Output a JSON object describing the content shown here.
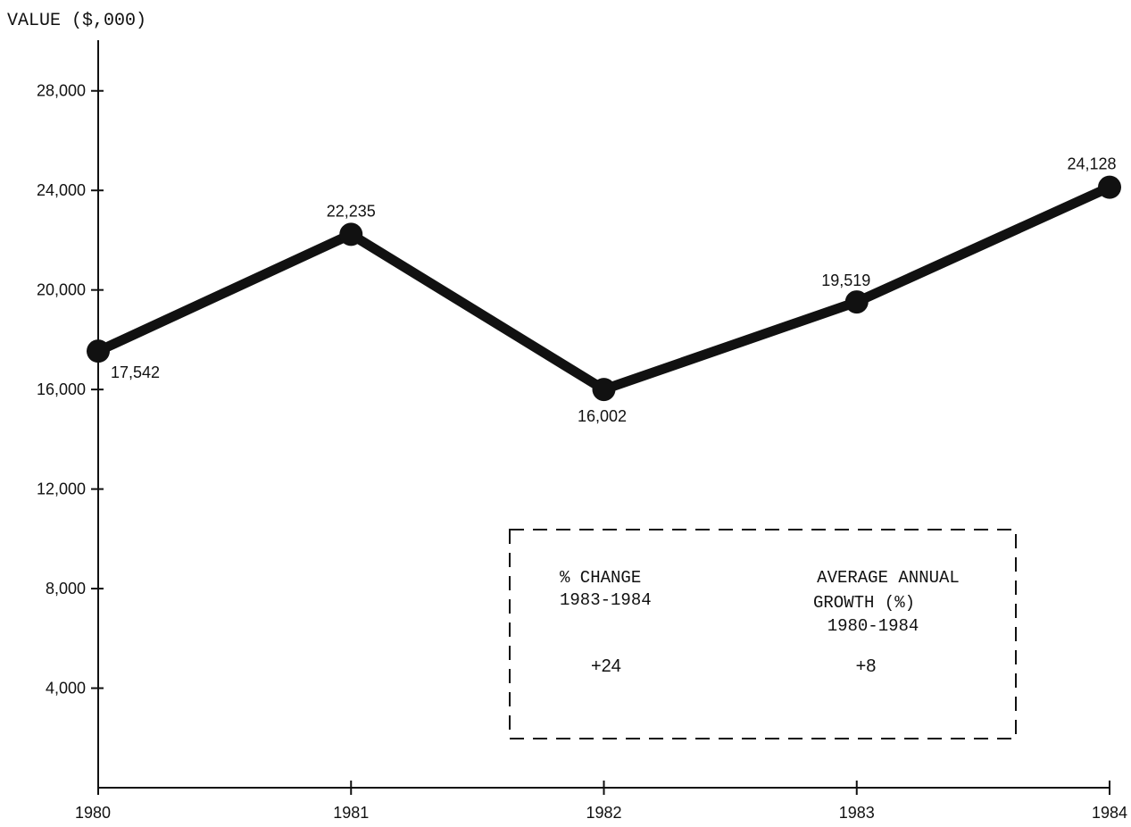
{
  "chart_data": {
    "type": "line",
    "title": "",
    "ylabel": "VALUE ($,000)",
    "xlabel": "",
    "x": [
      "1980",
      "1981",
      "1982",
      "1983",
      "1984"
    ],
    "series": [
      {
        "values": [
          17542,
          22235,
          16002,
          19519,
          24128
        ]
      }
    ],
    "data_labels": [
      "17,542",
      "22,235",
      "16,002",
      "19,519",
      "24,128"
    ],
    "ylim": [
      0,
      30000
    ],
    "yticks": [
      4000,
      8000,
      12000,
      16000,
      20000,
      24000,
      28000
    ],
    "ytick_labels": [
      "4,000",
      "8,000",
      "12,000",
      "16,000",
      "20,000",
      "24,000",
      "28,000"
    ],
    "grid": false,
    "line_color": "#111111",
    "annotation_box": {
      "left_heading_line1": "% CHANGE",
      "left_heading_line2": "1983-1984",
      "left_value": "+24",
      "right_heading_line1": "AVERAGE ANNUAL",
      "right_heading_line2": "GROWTH (%)",
      "right_heading_line3": "1980-1984",
      "right_value": "+8"
    }
  }
}
